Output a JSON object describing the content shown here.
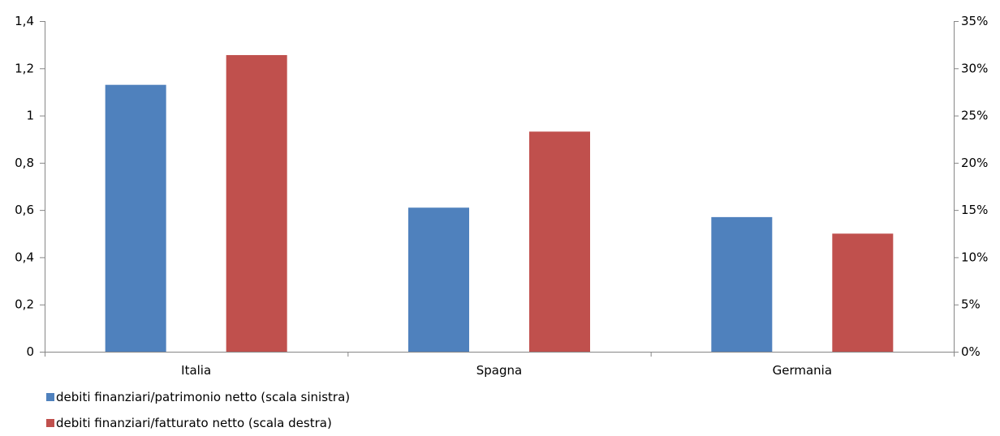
{
  "chart_data": {
    "type": "bar",
    "categories": [
      "Italia",
      "Spagna",
      "Germania"
    ],
    "series": [
      {
        "name": "debiti finanziari/patrimonio netto (scala sinistra)",
        "axis": "left",
        "color": "#4F81BD",
        "values": [
          1.13,
          0.61,
          0.57
        ]
      },
      {
        "name": "debiti finanziari/fatturato netto (scala destra)",
        "axis": "right",
        "color": "#C0504D",
        "values": [
          0.314,
          0.233,
          0.125
        ]
      }
    ],
    "y_left": {
      "ylim": [
        0,
        1.4
      ],
      "tick_labels": [
        "0",
        "0,2",
        "0,4",
        "0,6",
        "0,8",
        "1",
        "1,2",
        "1,4"
      ]
    },
    "y_right": {
      "ylim": [
        0,
        0.35
      ],
      "tick_labels": [
        "0%",
        "5%",
        "10%",
        "15%",
        "20%",
        "25%",
        "30%",
        "35%"
      ]
    },
    "grid": false,
    "legend_position": "bottom-left"
  }
}
